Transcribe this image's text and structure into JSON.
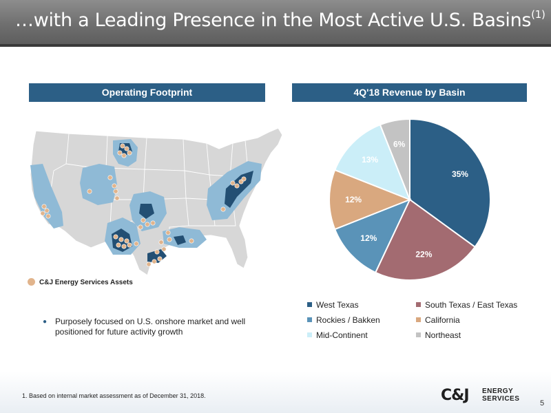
{
  "header": {
    "title": "…with a Leading Presence in the Most Active U.S. Basins",
    "title_sup": "(1)"
  },
  "left_panel": {
    "banner": "Operating Footprint",
    "assets_legend": "C&J Energy Services Assets",
    "bullet": "Purposely focused on U.S. onshore market and well positioned for future activity growth"
  },
  "chart_data": {
    "type": "pie",
    "title": "4Q'18 Revenue by Basin",
    "categories": [
      "West Texas",
      "South Texas / East Texas",
      "Rockies / Bakken",
      "California",
      "Mid-Continent",
      "Northeast"
    ],
    "values": [
      35,
      22,
      12,
      12,
      13,
      6
    ],
    "labels": [
      "35%",
      "22%",
      "12%",
      "12%",
      "13%",
      "6%"
    ],
    "colors": [
      "#2c5f86",
      "#a36b71",
      "#5a93b8",
      "#d9a87f",
      "#cbeef8",
      "#c3c3c3"
    ],
    "label_colors": [
      "#ffffff",
      "#ffffff",
      "#ffffff",
      "#ffffff",
      "#ffffff",
      "#ffffff"
    ],
    "legend_placement": "bottom"
  },
  "colors": {
    "basin_light": "#8fbad6",
    "basin_dark": "#234f73",
    "state_fill": "#d7d7d7",
    "asset_dot": "#e1b48c",
    "banner": "#2c5f86"
  },
  "footer": {
    "footnote": "1. Based on internal market assessment as of December 31, 2018.",
    "logo_mark": "C&J",
    "logo_line1": "ENERGY",
    "logo_line2": "SERVICES",
    "page_number": "5"
  }
}
